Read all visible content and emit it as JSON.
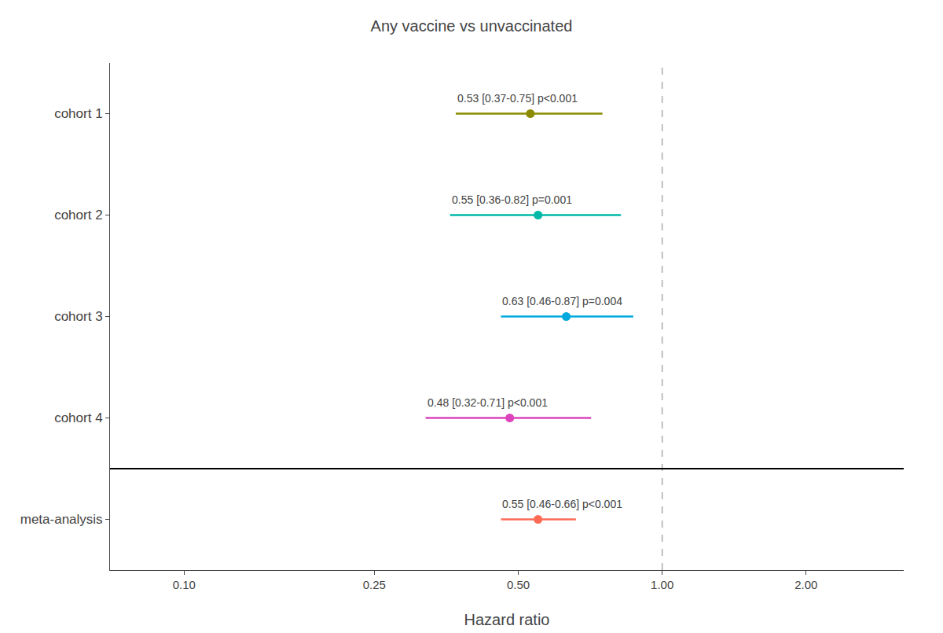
{
  "chart_data": {
    "type": "forest",
    "title": "Any vaccine vs unvaccinated",
    "xlabel": "Hazard ratio",
    "categories": [
      "cohort 1",
      "cohort 2",
      "cohort 3",
      "cohort 4",
      "meta-analysis"
    ],
    "values": [
      0.53,
      0.55,
      0.63,
      0.48,
      0.55
    ],
    "ci_low": [
      0.37,
      0.36,
      0.46,
      0.32,
      0.46
    ],
    "ci_high": [
      0.75,
      0.82,
      0.87,
      0.71,
      0.66
    ],
    "annotations": [
      "0.53 [0.37-0.75] p<0.001",
      "0.55 [0.36-0.82] p=0.001",
      "0.63 [0.46-0.87] p=0.004",
      "0.48 [0.32-0.71] p<0.001",
      "0.55 [0.46-0.66] p<0.001"
    ],
    "colors": [
      "#8B8B00",
      "#00B8A8",
      "#00AADD",
      "#DD44BB",
      "#FF6B55"
    ],
    "log": "x",
    "xlim": [
      0.07,
      3.2
    ],
    "xticks": [
      {
        "value": 0.1,
        "label": "0.10"
      },
      {
        "value": 0.25,
        "label": "0.25"
      },
      {
        "value": 0.5,
        "label": "0.50"
      },
      {
        "value": 1.0,
        "label": "1.00"
      },
      {
        "value": 2.0,
        "label": "2.00"
      }
    ],
    "ref_line": 1.0,
    "grid": false
  }
}
